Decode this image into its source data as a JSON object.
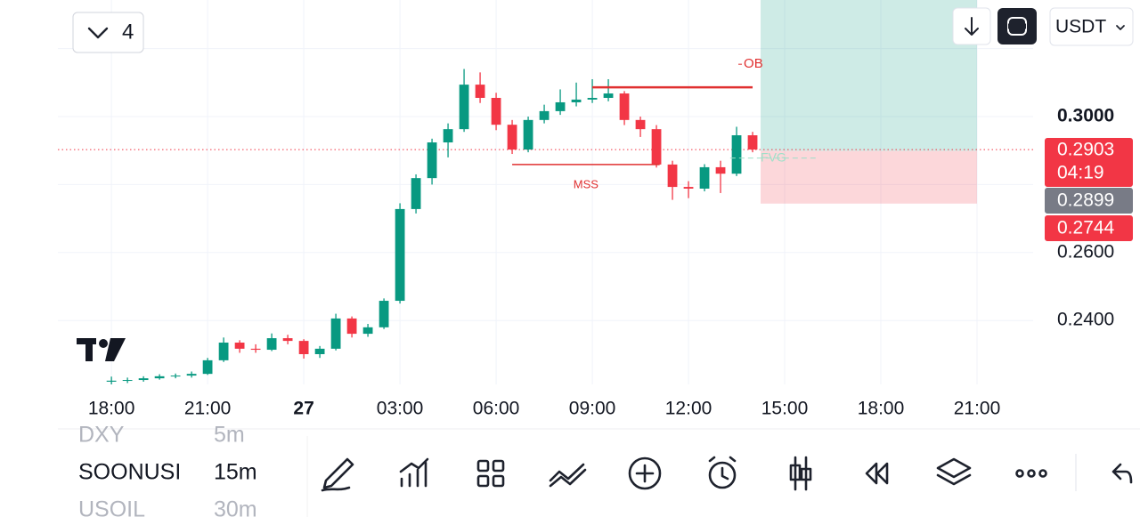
{
  "top_bar": {
    "interval_count": "4",
    "currency": "USDT"
  },
  "chart_data": {
    "type": "candlestick",
    "x": [
      0,
      0.5,
      1,
      1.5,
      2,
      2.5,
      3,
      3.5,
      4,
      4.5,
      5,
      5.5,
      6,
      6.5,
      7,
      7.5,
      8,
      8.5,
      9,
      9.5,
      10,
      10.5,
      11,
      11.5,
      12,
      12.5,
      13,
      13.5,
      14,
      14.5,
      15,
      15.5,
      16,
      16.5,
      17,
      17.5,
      18,
      18.5,
      19,
      19.5,
      20
    ],
    "candles": [
      [
        0.222,
        0.2235,
        0.2212,
        0.2223
      ],
      [
        0.2223,
        0.2232,
        0.2216,
        0.2225
      ],
      [
        0.2225,
        0.2236,
        0.222,
        0.223
      ],
      [
        0.223,
        0.2242,
        0.2226,
        0.2236
      ],
      [
        0.2236,
        0.2244,
        0.223,
        0.2238
      ],
      [
        0.2238,
        0.225,
        0.2232,
        0.2243
      ],
      [
        0.2243,
        0.229,
        0.224,
        0.2283
      ],
      [
        0.2283,
        0.235,
        0.2278,
        0.2335
      ],
      [
        0.2335,
        0.2342,
        0.2305,
        0.2317
      ],
      [
        0.2317,
        0.233,
        0.2305,
        0.2314
      ],
      [
        0.2314,
        0.2362,
        0.231,
        0.2348
      ],
      [
        0.2348,
        0.2358,
        0.233,
        0.234
      ],
      [
        0.234,
        0.2345,
        0.2288,
        0.2301
      ],
      [
        0.2301,
        0.2325,
        0.229,
        0.2317
      ],
      [
        0.2317,
        0.242,
        0.2312,
        0.2406
      ],
      [
        0.2406,
        0.2412,
        0.235,
        0.2361
      ],
      [
        0.2361,
        0.239,
        0.2352,
        0.238
      ],
      [
        0.238,
        0.2465,
        0.2375,
        0.2458
      ],
      [
        0.2458,
        0.2745,
        0.245,
        0.2728
      ],
      [
        0.2728,
        0.283,
        0.2715,
        0.2819
      ],
      [
        0.2819,
        0.2935,
        0.28,
        0.2924
      ],
      [
        0.2924,
        0.298,
        0.288,
        0.2963
      ],
      [
        0.2963,
        0.314,
        0.2955,
        0.3094
      ],
      [
        0.3094,
        0.313,
        0.304,
        0.3055
      ],
      [
        0.3055,
        0.307,
        0.296,
        0.2976
      ],
      [
        0.2976,
        0.299,
        0.289,
        0.2903
      ],
      [
        0.2903,
        0.3,
        0.2895,
        0.299
      ],
      [
        0.299,
        0.3035,
        0.298,
        0.3016
      ],
      [
        0.3016,
        0.308,
        0.3005,
        0.3042
      ],
      [
        0.3042,
        0.31,
        0.303,
        0.305
      ],
      [
        0.305,
        0.311,
        0.304,
        0.3055
      ],
      [
        0.3055,
        0.311,
        0.3045,
        0.3068
      ],
      [
        0.3068,
        0.3075,
        0.2975,
        0.299
      ],
      [
        0.299,
        0.3,
        0.294,
        0.2963
      ],
      [
        0.2963,
        0.2975,
        0.285,
        0.2859
      ],
      [
        0.2859,
        0.287,
        0.2755,
        0.2793
      ],
      [
        0.2793,
        0.281,
        0.276,
        0.2788
      ],
      [
        0.2788,
        0.286,
        0.278,
        0.2851
      ],
      [
        0.2851,
        0.287,
        0.2775,
        0.2832
      ],
      [
        0.2832,
        0.297,
        0.2825,
        0.2945
      ],
      [
        0.2945,
        0.2955,
        0.2895,
        0.2903
      ]
    ],
    "colors": {
      "up": "#089981",
      "down": "#f23645"
    },
    "xlim": [
      -1.67,
      28.75
    ],
    "ylim": [
      0.2212,
      0.3343
    ],
    "xticks": [
      {
        "value": 0,
        "label": "18:00"
      },
      {
        "value": 3,
        "label": "21:00"
      },
      {
        "value": 6,
        "label": "27"
      },
      {
        "value": 9,
        "label": "03:00"
      },
      {
        "value": 12,
        "label": "06:00"
      },
      {
        "value": 15,
        "label": "09:00"
      },
      {
        "value": 18,
        "label": "12:00"
      },
      {
        "value": 21,
        "label": "15:00"
      },
      {
        "value": 24,
        "label": "18:00"
      },
      {
        "value": 27,
        "label": "21:00"
      }
    ],
    "yticks": [
      {
        "value": 0.24,
        "label": "0.2400"
      },
      {
        "value": 0.26,
        "label": "0.2600"
      },
      {
        "value": 0.28,
        "label": null
      },
      {
        "value": 0.3,
        "label": "0.3000"
      },
      {
        "value": 0.32,
        "label": null
      }
    ],
    "grid": true,
    "last_price": {
      "value": 0.2903,
      "countdown": "04:19"
    },
    "position": {
      "entry": 0.2899,
      "stop": 0.2744,
      "target": 0.34,
      "start": 20.25,
      "end": 27
    },
    "annotations": [
      {
        "text": "OB",
        "level": 0.3086,
        "from": 15,
        "to": 20
      },
      {
        "text": "MSS",
        "level": 0.2859,
        "from": 12.5,
        "to": 17.1
      },
      {
        "text": "FVG",
        "level": 0.2878,
        "from": 19.3,
        "to": 22
      }
    ]
  },
  "watchlist": [
    {
      "symbol": "DXY",
      "interval": "5m"
    },
    {
      "symbol": "SOONUSI",
      "interval": "15m"
    },
    {
      "symbol": "USOIL",
      "interval": "30m"
    }
  ]
}
